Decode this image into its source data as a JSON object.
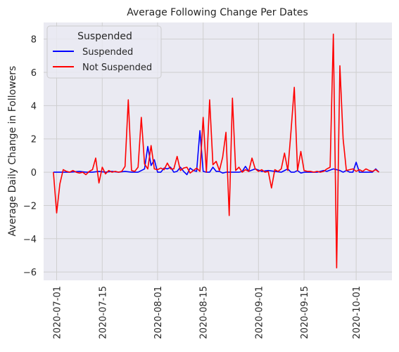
{
  "chart_data": {
    "type": "line",
    "title": "Average Following Change Per Dates",
    "xlabel": "",
    "ylabel": "Average Daily Change in Followers",
    "xlim": [
      "2020-06-27",
      "2020-10-12"
    ],
    "ylim": [
      -6.5,
      9.0
    ],
    "x_ticks": [
      "2020-07-01",
      "2020-07-15",
      "2020-08-01",
      "2020-08-15",
      "2020-09-01",
      "2020-09-15",
      "2020-10-01"
    ],
    "y_ticks": [
      -6,
      -4,
      -2,
      0,
      2,
      4,
      6,
      8
    ],
    "grid": true,
    "legend": {
      "title": "Suspended",
      "location": "upper-left"
    },
    "series": [
      {
        "name": "Suspended",
        "color": "#0000ff",
        "points": [
          [
            "2020-06-30",
            0.0
          ],
          [
            "2020-07-03",
            0.0
          ],
          [
            "2020-07-05",
            0.0
          ],
          [
            "2020-07-08",
            0.05
          ],
          [
            "2020-07-10",
            0.0
          ],
          [
            "2020-07-12",
            0.0
          ],
          [
            "2020-07-14",
            0.05
          ],
          [
            "2020-07-16",
            0.0
          ],
          [
            "2020-07-18",
            0.05
          ],
          [
            "2020-07-20",
            0.0
          ],
          [
            "2020-07-22",
            0.05
          ],
          [
            "2020-07-24",
            0.0
          ],
          [
            "2020-07-26",
            0.0
          ],
          [
            "2020-07-28",
            0.2
          ],
          [
            "2020-07-29",
            1.55
          ],
          [
            "2020-07-30",
            0.4
          ],
          [
            "2020-07-31",
            0.75
          ],
          [
            "2020-08-01",
            0.0
          ],
          [
            "2020-08-02",
            0.0
          ],
          [
            "2020-08-03",
            0.25
          ],
          [
            "2020-08-04",
            0.2
          ],
          [
            "2020-08-05",
            0.3
          ],
          [
            "2020-08-06",
            0.0
          ],
          [
            "2020-08-07",
            0.05
          ],
          [
            "2020-08-08",
            0.3
          ],
          [
            "2020-08-09",
            0.05
          ],
          [
            "2020-08-10",
            -0.15
          ],
          [
            "2020-08-11",
            0.25
          ],
          [
            "2020-08-12",
            0.1
          ],
          [
            "2020-08-13",
            0.05
          ],
          [
            "2020-08-14",
            2.5
          ],
          [
            "2020-08-15",
            0.05
          ],
          [
            "2020-08-16",
            0.0
          ],
          [
            "2020-08-17",
            0.0
          ],
          [
            "2020-08-18",
            0.3
          ],
          [
            "2020-08-19",
            0.05
          ],
          [
            "2020-08-20",
            0.05
          ],
          [
            "2020-08-21",
            -0.05
          ],
          [
            "2020-08-22",
            0.0
          ],
          [
            "2020-08-24",
            0.0
          ],
          [
            "2020-08-26",
            0.0
          ],
          [
            "2020-08-27",
            0.05
          ],
          [
            "2020-08-28",
            0.35
          ],
          [
            "2020-08-29",
            0.05
          ],
          [
            "2020-08-31",
            0.2
          ],
          [
            "2020-09-02",
            0.05
          ],
          [
            "2020-09-04",
            0.1
          ],
          [
            "2020-09-06",
            0.05
          ],
          [
            "2020-09-08",
            0.0
          ],
          [
            "2020-09-10",
            0.2
          ],
          [
            "2020-09-11",
            0.0
          ],
          [
            "2020-09-12",
            0.0
          ],
          [
            "2020-09-13",
            0.1
          ],
          [
            "2020-09-14",
            -0.05
          ],
          [
            "2020-09-15",
            0.0
          ],
          [
            "2020-09-17",
            0.0
          ],
          [
            "2020-09-19",
            0.0
          ],
          [
            "2020-09-21",
            0.1
          ],
          [
            "2020-09-22",
            0.05
          ],
          [
            "2020-09-24",
            0.2
          ],
          [
            "2020-09-25",
            0.15
          ],
          [
            "2020-09-26",
            0.1
          ],
          [
            "2020-09-27",
            0.0
          ],
          [
            "2020-09-28",
            0.1
          ],
          [
            "2020-09-29",
            0.0
          ],
          [
            "2020-09-30",
            0.0
          ],
          [
            "2020-10-01",
            0.6
          ],
          [
            "2020-10-02",
            0.0
          ],
          [
            "2020-10-04",
            0.0
          ],
          [
            "2020-10-06",
            0.0
          ],
          [
            "2020-10-07",
            0.2
          ],
          [
            "2020-10-08",
            0.0
          ]
        ]
      },
      {
        "name": "Not Suspended",
        "color": "#ff0000",
        "points": [
          [
            "2020-06-30",
            0.0
          ],
          [
            "2020-07-01",
            -2.45
          ],
          [
            "2020-07-02",
            -0.7
          ],
          [
            "2020-07-03",
            0.15
          ],
          [
            "2020-07-04",
            0.05
          ],
          [
            "2020-07-05",
            0.0
          ],
          [
            "2020-07-06",
            0.1
          ],
          [
            "2020-07-07",
            0.0
          ],
          [
            "2020-07-08",
            -0.05
          ],
          [
            "2020-07-09",
            0.0
          ],
          [
            "2020-07-10",
            -0.15
          ],
          [
            "2020-07-11",
            0.05
          ],
          [
            "2020-07-12",
            0.15
          ],
          [
            "2020-07-13",
            0.85
          ],
          [
            "2020-07-14",
            -0.65
          ],
          [
            "2020-07-15",
            0.3
          ],
          [
            "2020-07-16",
            -0.1
          ],
          [
            "2020-07-17",
            0.1
          ],
          [
            "2020-07-18",
            0.0
          ],
          [
            "2020-07-19",
            0.05
          ],
          [
            "2020-07-20",
            0.0
          ],
          [
            "2020-07-21",
            0.05
          ],
          [
            "2020-07-22",
            0.35
          ],
          [
            "2020-07-23",
            4.35
          ],
          [
            "2020-07-24",
            0.1
          ],
          [
            "2020-07-25",
            0.05
          ],
          [
            "2020-07-26",
            0.3
          ],
          [
            "2020-07-27",
            3.3
          ],
          [
            "2020-07-28",
            0.5
          ],
          [
            "2020-07-29",
            0.2
          ],
          [
            "2020-07-30",
            1.6
          ],
          [
            "2020-07-31",
            0.2
          ],
          [
            "2020-08-01",
            0.15
          ],
          [
            "2020-08-02",
            0.25
          ],
          [
            "2020-08-03",
            0.15
          ],
          [
            "2020-08-04",
            0.55
          ],
          [
            "2020-08-05",
            0.2
          ],
          [
            "2020-08-06",
            0.2
          ],
          [
            "2020-08-07",
            0.95
          ],
          [
            "2020-08-08",
            0.1
          ],
          [
            "2020-08-09",
            0.25
          ],
          [
            "2020-08-10",
            0.3
          ],
          [
            "2020-08-11",
            -0.05
          ],
          [
            "2020-08-12",
            0.1
          ],
          [
            "2020-08-13",
            0.25
          ],
          [
            "2020-08-14",
            0.05
          ],
          [
            "2020-08-15",
            3.3
          ],
          [
            "2020-08-16",
            0.0
          ],
          [
            "2020-08-17",
            4.35
          ],
          [
            "2020-08-18",
            0.45
          ],
          [
            "2020-08-19",
            0.65
          ],
          [
            "2020-08-20",
            0.1
          ],
          [
            "2020-08-21",
            0.9
          ],
          [
            "2020-08-22",
            2.4
          ],
          [
            "2020-08-23",
            -2.6
          ],
          [
            "2020-08-24",
            4.45
          ],
          [
            "2020-08-25",
            0.1
          ],
          [
            "2020-08-26",
            0.3
          ],
          [
            "2020-08-27",
            0.0
          ],
          [
            "2020-08-28",
            0.15
          ],
          [
            "2020-08-29",
            0.05
          ],
          [
            "2020-08-30",
            0.85
          ],
          [
            "2020-08-31",
            0.2
          ],
          [
            "2020-09-01",
            0.05
          ],
          [
            "2020-09-02",
            0.15
          ],
          [
            "2020-09-03",
            0.0
          ],
          [
            "2020-09-04",
            0.05
          ],
          [
            "2020-09-05",
            -0.95
          ],
          [
            "2020-09-06",
            0.15
          ],
          [
            "2020-09-07",
            0.05
          ],
          [
            "2020-09-08",
            0.2
          ],
          [
            "2020-09-09",
            1.15
          ],
          [
            "2020-09-10",
            0.1
          ],
          [
            "2020-09-11",
            2.5
          ],
          [
            "2020-09-12",
            5.1
          ],
          [
            "2020-09-13",
            0.1
          ],
          [
            "2020-09-14",
            1.25
          ],
          [
            "2020-09-15",
            0.1
          ],
          [
            "2020-09-16",
            0.05
          ],
          [
            "2020-09-17",
            0.05
          ],
          [
            "2020-09-18",
            0.0
          ],
          [
            "2020-09-19",
            0.05
          ],
          [
            "2020-09-20",
            0.0
          ],
          [
            "2020-09-21",
            0.05
          ],
          [
            "2020-09-22",
            0.2
          ],
          [
            "2020-09-23",
            0.3
          ],
          [
            "2020-09-24",
            8.3
          ],
          [
            "2020-09-25",
            -5.75
          ],
          [
            "2020-09-26",
            6.4
          ],
          [
            "2020-09-27",
            2.0
          ],
          [
            "2020-09-28",
            0.1
          ],
          [
            "2020-09-29",
            0.15
          ],
          [
            "2020-09-30",
            0.2
          ],
          [
            "2020-10-01",
            0.05
          ],
          [
            "2020-10-02",
            0.15
          ],
          [
            "2020-10-03",
            0.05
          ],
          [
            "2020-10-04",
            0.2
          ],
          [
            "2020-10-05",
            0.1
          ],
          [
            "2020-10-06",
            0.05
          ],
          [
            "2020-10-07",
            0.15
          ],
          [
            "2020-10-08",
            0.0
          ]
        ]
      }
    ]
  }
}
